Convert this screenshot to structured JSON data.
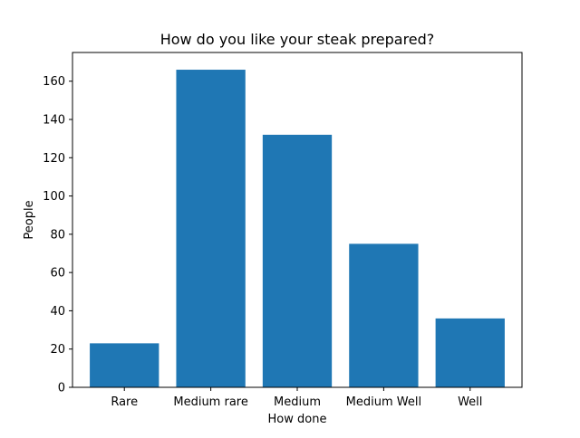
{
  "chart_data": {
    "type": "bar",
    "title": "How do you like your steak prepared?",
    "xlabel": "How done",
    "ylabel": "People",
    "categories": [
      "Rare",
      "Medium rare",
      "Medium",
      "Medium Well",
      "Well"
    ],
    "values": [
      23,
      166,
      132,
      75,
      36
    ],
    "ylim": [
      0,
      175
    ],
    "yticks": [
      0,
      20,
      40,
      60,
      80,
      100,
      120,
      140,
      160
    ],
    "grid": false,
    "legend": "none",
    "bar_color": "#1f77b4"
  }
}
